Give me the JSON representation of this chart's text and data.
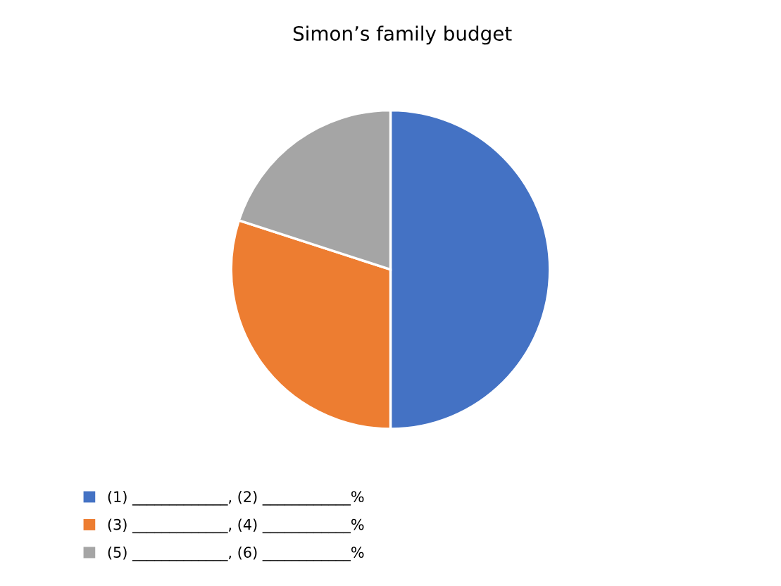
{
  "chart_data": {
    "type": "pie",
    "title": "Simon’s family budget",
    "categories": [
      "(1) _____________, (2) ____________%",
      "(3) _____________, (4) ____________%",
      "(5) _____________, (6) ____________%"
    ],
    "values": [
      50,
      30,
      20
    ],
    "colors": [
      "#4472c4",
      "#ed7d31",
      "#a5a5a5"
    ],
    "legend": "bottom left"
  }
}
